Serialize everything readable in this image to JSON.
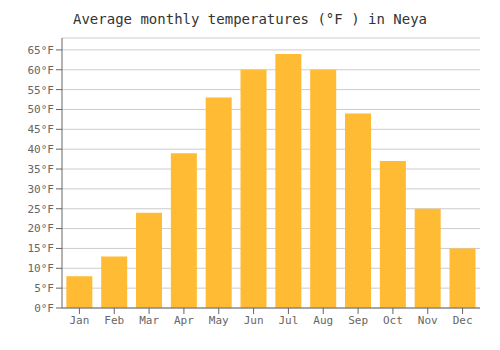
{
  "chart_data": {
    "type": "bar",
    "title": "Average monthly temperatures (°F ) in Neya",
    "categories": [
      "Jan",
      "Feb",
      "Mar",
      "Apr",
      "May",
      "Jun",
      "Jul",
      "Aug",
      "Sep",
      "Oct",
      "Nov",
      "Dec"
    ],
    "values": [
      8,
      13,
      24,
      39,
      53,
      60,
      64,
      60,
      49,
      37,
      25,
      15
    ],
    "color": "#FFBB33",
    "ylim": [
      0,
      68
    ],
    "yticks": [
      {
        "value": 0,
        "label": "0°F"
      },
      {
        "value": 5,
        "label": "5°F"
      },
      {
        "value": 10,
        "label": "10°F"
      },
      {
        "value": 15,
        "label": "15°F"
      },
      {
        "value": 20,
        "label": "20°F"
      },
      {
        "value": 25,
        "label": "25°F"
      },
      {
        "value": 30,
        "label": "30°F"
      },
      {
        "value": 35,
        "label": "35°F"
      },
      {
        "value": 40,
        "label": "40°F"
      },
      {
        "value": 45,
        "label": "45°F"
      },
      {
        "value": 50,
        "label": "50°F"
      },
      {
        "value": 55,
        "label": "55°F"
      },
      {
        "value": 60,
        "label": "60°F"
      },
      {
        "value": 65,
        "label": "65°F"
      }
    ],
    "grid": true
  }
}
